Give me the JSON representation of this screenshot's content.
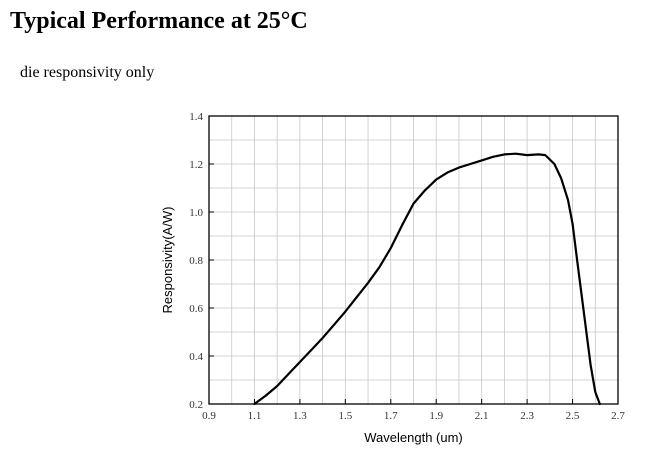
{
  "page": {
    "title": "Typical Performance at 25°C",
    "subtitle": "die responsivity only"
  },
  "chart_data": {
    "type": "line",
    "title": "",
    "xlabel": "Wavelength (um)",
    "ylabel": "Responsivity(A/W)",
    "xlim": [
      0.9,
      2.7
    ],
    "ylim": [
      0.2,
      1.4
    ],
    "x_ticks": [
      "0.9",
      "1.1",
      "1.3",
      "1.5",
      "1.7",
      "1.9",
      "2.1",
      "2.3",
      "2.5",
      "2.7"
    ],
    "y_ticks": [
      "0.2",
      "0.4",
      "0.6",
      "0.8",
      "1.0",
      "1.2",
      "1.4"
    ],
    "grid": true,
    "series": [
      {
        "x": [
          1.1,
          1.15,
          1.2,
          1.25,
          1.3,
          1.35,
          1.4,
          1.45,
          1.5,
          1.55,
          1.6,
          1.65,
          1.7,
          1.75,
          1.8,
          1.85,
          1.9,
          1.95,
          2.0,
          2.05,
          2.1,
          2.15,
          2.2,
          2.25,
          2.3,
          2.35,
          2.38,
          2.42,
          2.45,
          2.48,
          2.5,
          2.52,
          2.55,
          2.58,
          2.6,
          2.62
        ],
        "y": [
          0.2,
          0.235,
          0.275,
          0.325,
          0.375,
          0.425,
          0.475,
          0.53,
          0.585,
          0.645,
          0.705,
          0.77,
          0.85,
          0.945,
          1.035,
          1.09,
          1.135,
          1.165,
          1.185,
          1.2,
          1.215,
          1.23,
          1.24,
          1.243,
          1.237,
          1.24,
          1.237,
          1.2,
          1.14,
          1.05,
          0.95,
          0.8,
          0.58,
          0.36,
          0.25,
          0.2
        ]
      }
    ],
    "line_color": "#000000",
    "grid_color": "#c8c8c8"
  }
}
